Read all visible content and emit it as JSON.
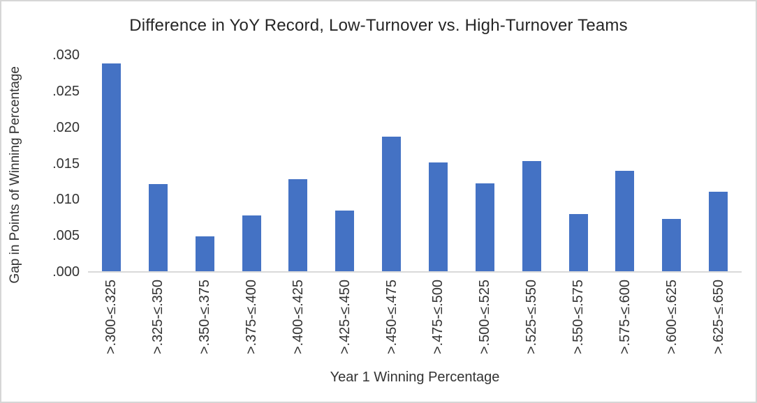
{
  "chart": {
    "title": "Difference in YoY Record, Low-Turnover vs. High-Turnover Teams",
    "x_axis_title": "Year 1 Winning Percentage",
    "y_axis_title": "Gap in Points of Winning Percentage"
  },
  "chart_data": {
    "type": "bar",
    "title": "Difference in YoY Record, Low-Turnover vs. High-Turnover Teams",
    "xlabel": "Year 1 Winning Percentage",
    "ylabel": "Gap in Points of Winning Percentage",
    "categories": [
      ">.300-≤.325",
      ">.325-≤.350",
      ">.350-≤.375",
      ">.375-≤.400",
      ">.400-≤.425",
      ">.425-≤.450",
      ">.450-≤.475",
      ">.475-≤.500",
      ">.500-≤.525",
      ">.525-≤.550",
      ">.550-≤.575",
      ">.575-≤.600",
      ">.600-≤.625",
      ">.625-≤.650"
    ],
    "values": [
      0.0288,
      0.0121,
      0.0048,
      0.0077,
      0.0128,
      0.0084,
      0.0187,
      0.0151,
      0.0122,
      0.0153,
      0.0079,
      0.0139,
      0.0073,
      0.011
    ],
    "ylim": [
      0,
      0.03
    ],
    "y_tick_labels": [
      ".000",
      ".005",
      ".010",
      ".015",
      ".020",
      ".025",
      ".030"
    ],
    "bar_color": "#4472C4",
    "axis_line_color": "#D9D9D9",
    "grid": false,
    "legend": "none"
  }
}
